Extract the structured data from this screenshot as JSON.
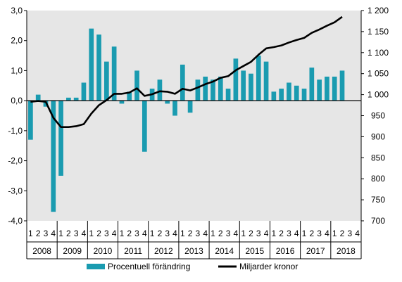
{
  "chart_data": {
    "type": "bar",
    "quarter_labels": [
      "1",
      "2",
      "3",
      "4"
    ],
    "years": [
      "2008",
      "2009",
      "2010",
      "2011",
      "2012",
      "2013",
      "2014",
      "2015",
      "2016",
      "2017",
      "2018"
    ],
    "left_axis": {
      "min": -4.0,
      "max": 3.0,
      "ticks": [
        "-4,0",
        "-3,0",
        "-2,0",
        "-1,0",
        "0,0",
        "1,0",
        "2,0",
        "3,0"
      ]
    },
    "right_axis": {
      "min": 700,
      "max": 1200,
      "ticks": [
        "700",
        "750",
        "800",
        "850",
        "900",
        "950",
        "1 000",
        "1 050",
        "1 100",
        "1 150",
        "1 200"
      ]
    },
    "grid": false,
    "legend_position": "bottom",
    "series": [
      {
        "name": "Procentuell förändring",
        "type": "bar",
        "axis": "left",
        "color": "#1a9bb0",
        "values": [
          -1.3,
          0.2,
          -0.2,
          -3.7,
          -2.5,
          0.1,
          0.1,
          0.6,
          2.4,
          2.2,
          1.3,
          1.8,
          -0.1,
          0.3,
          1.0,
          -1.7,
          0.4,
          0.7,
          -0.1,
          -0.5,
          1.2,
          -0.4,
          0.7,
          0.8,
          0.7,
          0.8,
          0.4,
          1.4,
          1.0,
          0.9,
          1.5,
          1.3,
          0.3,
          0.4,
          0.6,
          0.5,
          0.4,
          1.1,
          0.7,
          0.8,
          0.8,
          1.0,
          null,
          null
        ]
      },
      {
        "name": "Miljarder kronor",
        "type": "line",
        "axis": "right",
        "color": "#000000",
        "values": [
          983,
          985,
          983,
          945,
          923,
          923,
          925,
          930,
          955,
          975,
          987,
          1002,
          1002,
          1005,
          1015,
          997,
          1001,
          1008,
          1007,
          1002,
          1014,
          1010,
          1017,
          1025,
          1031,
          1040,
          1044,
          1058,
          1068,
          1078,
          1095,
          1110,
          1113,
          1117,
          1124,
          1130,
          1135,
          1147,
          1155,
          1164,
          1172,
          1185,
          null,
          null
        ]
      }
    ]
  }
}
